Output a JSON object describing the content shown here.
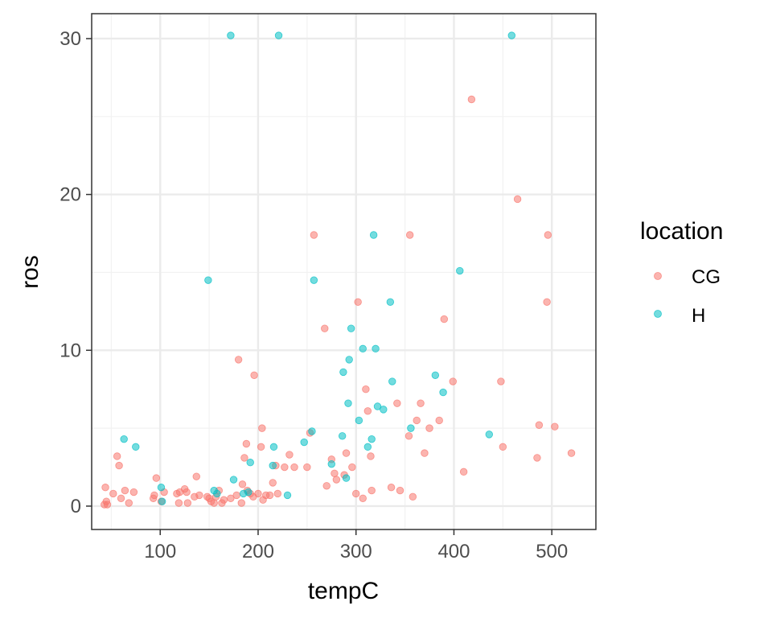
{
  "chart_data": {
    "type": "scatter",
    "title": "",
    "xlabel": "tempC",
    "ylabel": "ros",
    "xlim": [
      30,
      545
    ],
    "ylim": [
      -1.5,
      31.6
    ],
    "xticks": [
      100,
      200,
      300,
      400,
      500
    ],
    "yticks": [
      0,
      10,
      20,
      30
    ],
    "grid": true,
    "legend": {
      "title": "location",
      "position": "right"
    },
    "series": [
      {
        "name": "CG",
        "color": "#F8766D",
        "points": [
          [
            43,
            0.1
          ],
          [
            44,
            1.2
          ],
          [
            45,
            0.3
          ],
          [
            46,
            0.1
          ],
          [
            52,
            0.8
          ],
          [
            56,
            3.2
          ],
          [
            58,
            2.6
          ],
          [
            60,
            0.5
          ],
          [
            64,
            1.0
          ],
          [
            68,
            0.2
          ],
          [
            73,
            0.9
          ],
          [
            93,
            0.5
          ],
          [
            94,
            0.7
          ],
          [
            96,
            1.8
          ],
          [
            101,
            0.3
          ],
          [
            104,
            0.9
          ],
          [
            117,
            0.8
          ],
          [
            119,
            0.2
          ],
          [
            120,
            0.9
          ],
          [
            125,
            1.1
          ],
          [
            127,
            0.9
          ],
          [
            128,
            0.2
          ],
          [
            135,
            0.6
          ],
          [
            137,
            1.9
          ],
          [
            140,
            0.7
          ],
          [
            148,
            0.6
          ],
          [
            150,
            0.5
          ],
          [
            152,
            0.3
          ],
          [
            155,
            0.2
          ],
          [
            157,
            0.6
          ],
          [
            160,
            1.0
          ],
          [
            163,
            0.2
          ],
          [
            165,
            0.4
          ],
          [
            172,
            0.5
          ],
          [
            178,
            0.7
          ],
          [
            180,
            9.4
          ],
          [
            183,
            0.2
          ],
          [
            184,
            1.4
          ],
          [
            186,
            3.1
          ],
          [
            188,
            4.0
          ],
          [
            189,
            1.0
          ],
          [
            192,
            0.8
          ],
          [
            195,
            0.6
          ],
          [
            196,
            8.4
          ],
          [
            200,
            0.8
          ],
          [
            203,
            3.8
          ],
          [
            204,
            5.0
          ],
          [
            205,
            0.4
          ],
          [
            208,
            0.7
          ],
          [
            212,
            0.7
          ],
          [
            215,
            1.5
          ],
          [
            218,
            2.6
          ],
          [
            220,
            0.8
          ],
          [
            227,
            2.5
          ],
          [
            232,
            3.3
          ],
          [
            237,
            2.5
          ],
          [
            250,
            2.5
          ],
          [
            253,
            4.7
          ],
          [
            257,
            17.4
          ],
          [
            268,
            11.4
          ],
          [
            270,
            1.3
          ],
          [
            275,
            3.0
          ],
          [
            278,
            2.1
          ],
          [
            280,
            1.7
          ],
          [
            288,
            2.0
          ],
          [
            290,
            3.4
          ],
          [
            296,
            2.5
          ],
          [
            300,
            0.8
          ],
          [
            302,
            13.1
          ],
          [
            307,
            0.5
          ],
          [
            310,
            7.5
          ],
          [
            312,
            6.1
          ],
          [
            315,
            3.2
          ],
          [
            316,
            1.0
          ],
          [
            336,
            1.2
          ],
          [
            342,
            6.6
          ],
          [
            345,
            1.0
          ],
          [
            354,
            4.5
          ],
          [
            355,
            17.4
          ],
          [
            358,
            0.6
          ],
          [
            362,
            5.5
          ],
          [
            366,
            6.6
          ],
          [
            370,
            3.4
          ],
          [
            375,
            5.0
          ],
          [
            385,
            5.5
          ],
          [
            390,
            12.0
          ],
          [
            399,
            8.0
          ],
          [
            410,
            2.2
          ],
          [
            418,
            26.1
          ],
          [
            448,
            8.0
          ],
          [
            450,
            3.8
          ],
          [
            465,
            19.7
          ],
          [
            485,
            3.1
          ],
          [
            487,
            5.2
          ],
          [
            495,
            13.1
          ],
          [
            496,
            17.4
          ],
          [
            503,
            5.1
          ],
          [
            520,
            3.4
          ]
        ]
      },
      {
        "name": "H",
        "color": "#00BFC4",
        "points": [
          [
            63,
            4.3
          ],
          [
            75,
            3.8
          ],
          [
            101,
            1.2
          ],
          [
            102,
            0.3
          ],
          [
            149,
            14.5
          ],
          [
            155,
            1.0
          ],
          [
            158,
            0.8
          ],
          [
            172,
            30.2
          ],
          [
            175,
            1.7
          ],
          [
            185,
            0.8
          ],
          [
            190,
            0.9
          ],
          [
            192,
            2.8
          ],
          [
            215,
            2.6
          ],
          [
            216,
            3.8
          ],
          [
            221,
            30.2
          ],
          [
            230,
            0.7
          ],
          [
            247,
            4.1
          ],
          [
            255,
            4.8
          ],
          [
            257,
            14.5
          ],
          [
            275,
            2.7
          ],
          [
            286,
            4.5
          ],
          [
            287,
            8.6
          ],
          [
            290,
            1.8
          ],
          [
            292,
            6.6
          ],
          [
            293,
            9.4
          ],
          [
            295,
            11.4
          ],
          [
            303,
            5.5
          ],
          [
            307,
            10.1
          ],
          [
            312,
            3.8
          ],
          [
            316,
            4.3
          ],
          [
            318,
            17.4
          ],
          [
            320,
            10.1
          ],
          [
            322,
            6.4
          ],
          [
            328,
            6.2
          ],
          [
            335,
            13.1
          ],
          [
            337,
            8.0
          ],
          [
            356,
            5.0
          ],
          [
            381,
            8.4
          ],
          [
            389,
            7.3
          ],
          [
            406,
            15.1
          ],
          [
            436,
            4.6
          ],
          [
            459,
            30.2
          ]
        ]
      }
    ]
  }
}
